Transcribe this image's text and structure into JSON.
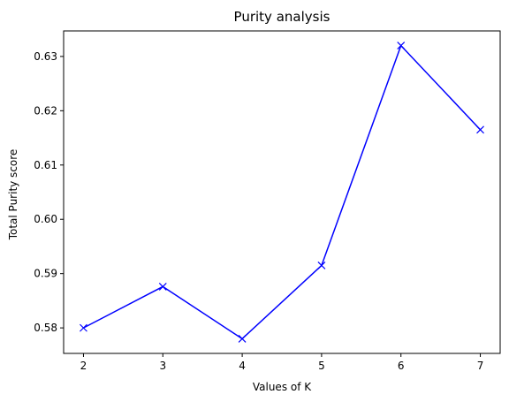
{
  "chart_data": {
    "type": "line",
    "title": "Purity analysis",
    "xlabel": "Values of K",
    "ylabel": "Total Purity score",
    "x": [
      2,
      3,
      4,
      5,
      6,
      7
    ],
    "series": [
      {
        "values": [
          0.58,
          0.5876,
          0.578,
          0.5915,
          0.632,
          0.6165
        ],
        "color": "#0000ff",
        "marker": "x"
      }
    ],
    "xticks": [
      2,
      3,
      4,
      5,
      6,
      7
    ],
    "yticks": [
      0.58,
      0.59,
      0.6,
      0.61,
      0.62,
      0.63
    ],
    "xtick_labels": [
      "2",
      "3",
      "4",
      "5",
      "6",
      "7"
    ],
    "ytick_labels": [
      "0.58",
      "0.59",
      "0.60",
      "0.61",
      "0.62",
      "0.63"
    ],
    "xlim": [
      1.75,
      7.25
    ],
    "ylim": [
      0.5753,
      0.6347
    ],
    "grid": false,
    "legend": false
  }
}
